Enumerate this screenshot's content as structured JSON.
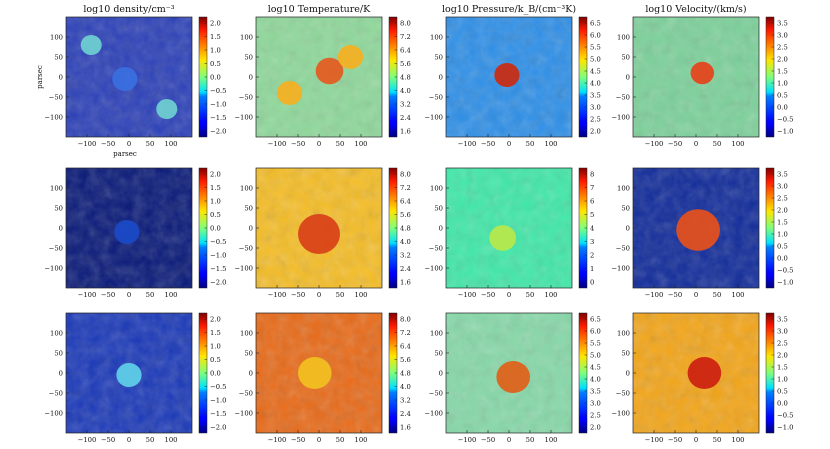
{
  "figure": {
    "columns": [
      {
        "key": "density",
        "title": "log10 density/cm⁻³"
      },
      {
        "key": "temperature",
        "title": "log10 Temperature/K"
      },
      {
        "key": "pressure",
        "title": "log10 Pressure/k_B/(cm⁻³K)"
      },
      {
        "key": "velocity",
        "title": "log10 Velocity/(km/s)"
      }
    ],
    "axis_labels": {
      "x": "parsec",
      "y": "parsec"
    }
  },
  "chart_data": {
    "type": "heatmap",
    "layout": "3 rows x 4 columns grid of 2D slice maps",
    "x_ticks": [
      -100,
      -50,
      0,
      50,
      100
    ],
    "x_tick_labels": [
      "−100",
      "−50",
      "0",
      "50",
      "100"
    ],
    "y_ticks": [
      100,
      50,
      0,
      -50,
      -100
    ],
    "y_tick_labels": [
      "100",
      "50",
      "0",
      "−50",
      "−100"
    ],
    "xlim": [
      -150,
      150
    ],
    "ylim": [
      -150,
      150
    ],
    "colorbars": [
      {
        "column": "density",
        "rows": [
          0,
          1,
          2
        ],
        "ticks": [
          "2.0",
          "1.5",
          "1.0",
          "0.5",
          "0.0",
          "−0.5",
          "−1.0",
          "−1.5",
          "−2.0"
        ],
        "range": [
          -2.4,
          2.2
        ]
      },
      {
        "column": "temperature",
        "rows": [
          0,
          1,
          2
        ],
        "ticks": [
          "8.0",
          "7.2",
          "6.4",
          "5.6",
          "4.8",
          "4.0",
          "3.2",
          "2.4",
          "1.6"
        ],
        "range": [
          1.2,
          8.2
        ]
      },
      {
        "column": "pressure",
        "rows": [
          0,
          2
        ],
        "ticks": [
          "6.5",
          "6.0",
          "5.5",
          "5.0",
          "4.5",
          "4.0",
          "3.5",
          "3.0",
          "2.5",
          "2.0"
        ],
        "range": [
          2.0,
          6.5
        ]
      },
      {
        "column": "pressure",
        "rows": [
          1
        ],
        "ticks": [
          "8",
          "7",
          "6",
          "5",
          "4",
          "3",
          "2",
          "1",
          "0"
        ],
        "range": [
          0,
          8.5
        ]
      },
      {
        "column": "velocity",
        "rows": [
          0,
          1,
          2
        ],
        "ticks": [
          "3.5",
          "3.0",
          "2.5",
          "2.0",
          "1.5",
          "1.0",
          "0.5",
          "0.0",
          "−0.5",
          "−1.0"
        ],
        "range": [
          -1.0,
          3.5
        ]
      }
    ],
    "panels": [
      {
        "row": 0,
        "column": "density",
        "background": "#2a3fb8",
        "blobs": [
          {
            "x": -90,
            "y": 80,
            "r": 25,
            "color": "#6fd0d0"
          },
          {
            "x": 90,
            "y": -80,
            "r": 25,
            "color": "#6fd0d0"
          },
          {
            "x": -10,
            "y": -5,
            "r": 30,
            "color": "#3a6fe0"
          }
        ]
      },
      {
        "row": 0,
        "column": "temperature",
        "background": "#8ed89a",
        "blobs": [
          {
            "x": 25,
            "y": 15,
            "r": 33,
            "color": "#e45a20"
          },
          {
            "x": -70,
            "y": -40,
            "r": 30,
            "color": "#f5b020"
          },
          {
            "x": 75,
            "y": 50,
            "r": 30,
            "color": "#f5b020"
          }
        ]
      },
      {
        "row": 0,
        "column": "pressure",
        "background": "#2d8fe8",
        "blobs": [
          {
            "x": -5,
            "y": 5,
            "r": 30,
            "color": "#cc2a10"
          }
        ]
      },
      {
        "row": 0,
        "column": "velocity",
        "background": "#7cd19a",
        "blobs": [
          {
            "x": 15,
            "y": 10,
            "r": 28,
            "color": "#e6421a"
          }
        ]
      },
      {
        "row": 1,
        "column": "density",
        "background": "#071878",
        "blobs": [
          {
            "x": -5,
            "y": -10,
            "r": 30,
            "color": "#1a4ac8"
          }
        ]
      },
      {
        "row": 1,
        "column": "temperature",
        "background": "#f5bd25",
        "blobs": [
          {
            "x": 0,
            "y": -15,
            "r": 50,
            "color": "#d84018"
          }
        ]
      },
      {
        "row": 1,
        "column": "pressure",
        "background": "#3fe8a8",
        "blobs": [
          {
            "x": -15,
            "y": -25,
            "r": 32,
            "color": "#b8e84a"
          }
        ]
      },
      {
        "row": 1,
        "column": "velocity",
        "background": "#0f2a9a",
        "blobs": [
          {
            "x": 5,
            "y": -5,
            "r": 52,
            "color": "#e8501a"
          }
        ]
      },
      {
        "row": 2,
        "column": "density",
        "background": "#1a38b8",
        "blobs": [
          {
            "x": 0,
            "y": -5,
            "r": 30,
            "color": "#5fd0e8"
          }
        ]
      },
      {
        "row": 2,
        "column": "temperature",
        "background": "#e86a18",
        "blobs": [
          {
            "x": -10,
            "y": 0,
            "r": 40,
            "color": "#f2c020"
          }
        ]
      },
      {
        "row": 2,
        "column": "pressure",
        "background": "#86d8a8",
        "blobs": [
          {
            "x": 10,
            "y": -10,
            "r": 40,
            "color": "#e06018"
          }
        ]
      },
      {
        "row": 2,
        "column": "velocity",
        "background": "#f3a518",
        "blobs": [
          {
            "x": 20,
            "y": 0,
            "r": 40,
            "color": "#cc2010"
          }
        ]
      }
    ]
  }
}
